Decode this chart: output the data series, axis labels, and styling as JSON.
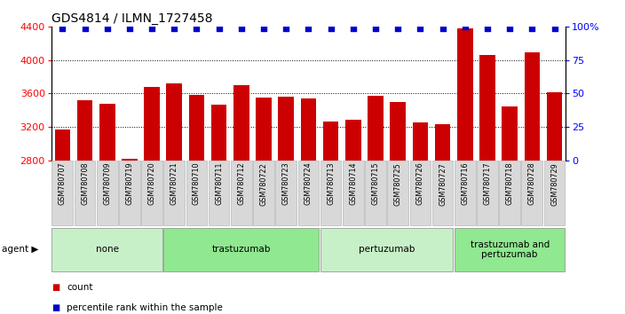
{
  "title": "GDS4814 / ILMN_1727458",
  "samples": [
    "GSM780707",
    "GSM780708",
    "GSM780709",
    "GSM780719",
    "GSM780720",
    "GSM780721",
    "GSM780710",
    "GSM780711",
    "GSM780712",
    "GSM780722",
    "GSM780723",
    "GSM780724",
    "GSM780713",
    "GSM780714",
    "GSM780715",
    "GSM780725",
    "GSM780726",
    "GSM780727",
    "GSM780716",
    "GSM780717",
    "GSM780718",
    "GSM780728",
    "GSM780729"
  ],
  "counts": [
    3170,
    3520,
    3480,
    2820,
    3680,
    3720,
    3580,
    3460,
    3700,
    3550,
    3560,
    3540,
    3260,
    3280,
    3570,
    3500,
    3250,
    3230,
    4380,
    4060,
    3440,
    4090,
    3610
  ],
  "percentile_ranks": [
    99,
    99,
    99,
    99,
    99,
    99,
    99,
    99,
    99,
    99,
    99,
    99,
    99,
    99,
    99,
    99,
    99,
    99,
    100,
    99,
    99,
    99,
    99
  ],
  "groups": [
    {
      "label": "none",
      "start": 0,
      "end": 5,
      "color": "#c8f0c8"
    },
    {
      "label": "trastuzumab",
      "start": 5,
      "end": 12,
      "color": "#90e890"
    },
    {
      "label": "pertuzumab",
      "start": 12,
      "end": 18,
      "color": "#c8f0c8"
    },
    {
      "label": "trastuzumab and\npertuzumab",
      "start": 18,
      "end": 23,
      "color": "#90e890"
    }
  ],
  "ylim_left": [
    2800,
    4400
  ],
  "ylim_right": [
    0,
    100
  ],
  "yticks_left": [
    2800,
    3200,
    3600,
    4000,
    4400
  ],
  "yticks_right": [
    0,
    25,
    50,
    75,
    100
  ],
  "bar_color": "#cc0000",
  "dot_color": "#0000cc",
  "bg_color": "#ffffff",
  "tick_bg_color": "#d8d8d8",
  "agent_label": "agent",
  "legend_count_label": "count",
  "legend_pct_label": "percentile rank within the sample",
  "grid_ticks": [
    3200,
    3600,
    4000
  ]
}
